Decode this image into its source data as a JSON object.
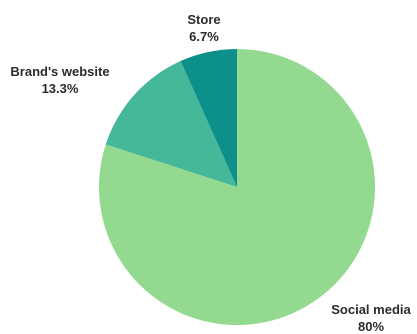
{
  "chart_data": {
    "type": "pie",
    "slices": [
      {
        "label": "Social media",
        "value": 80,
        "display": "80%",
        "color": "#93d98f"
      },
      {
        "label": "Brand's website",
        "value": 13.3,
        "display": "13.3%",
        "color": "#45b89a"
      },
      {
        "label": "Store",
        "value": 6.7,
        "display": "6.7%",
        "color": "#0d8f8c"
      }
    ],
    "start": "12 o'clock",
    "direction": "clockwise",
    "labels": "outside, name above percentage"
  }
}
